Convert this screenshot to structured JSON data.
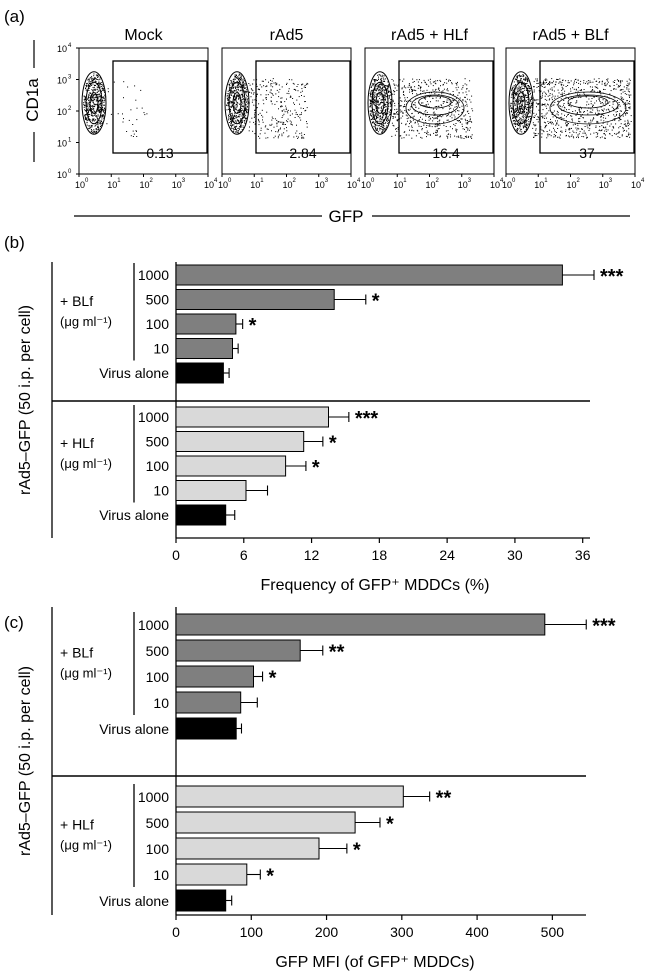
{
  "panel_a": {
    "label": "(a)",
    "ylabel": "CD1a",
    "xlabel": "GFP",
    "ticks": [
      "10",
      "10",
      "10",
      "10",
      "10"
    ],
    "tick_exponents": [
      "0",
      "1",
      "2",
      "3",
      "4"
    ],
    "plots": [
      {
        "title": "Mock",
        "gate_value": "0.13",
        "density": 0.04
      },
      {
        "title": "rAd5",
        "gate_value": "2.84",
        "density": 0.35
      },
      {
        "title": "rAd5 + HLf",
        "gate_value": "16.4",
        "density": 0.7
      },
      {
        "title": "rAd5 + BLf",
        "gate_value": "37",
        "density": 1.0
      }
    ]
  },
  "chart_data": [
    {
      "type": "bar",
      "orientation": "horizontal",
      "panel_label": "(b)",
      "xlabel": "Frequency of GFP⁺ MDDCs (%)",
      "ylabel": "rAd5–GFP (50 i.p. per cell)",
      "xlim": [
        0,
        37
      ],
      "xticks": [
        "0",
        "6",
        "12",
        "18",
        "24",
        "30",
        "36"
      ],
      "groups": [
        {
          "name": "+ BLf",
          "unit": "(μg ml⁻¹)",
          "color": "#7f7f7f",
          "categories": [
            "1000",
            "500",
            "100",
            "10",
            "Virus alone"
          ],
          "values": [
            34.2,
            14.0,
            5.3,
            5.0,
            4.2
          ],
          "errors": [
            2.8,
            2.8,
            0.6,
            0.5,
            0.5
          ],
          "significance": [
            "***",
            "*",
            "*",
            "",
            ""
          ]
        },
        {
          "name": "+ HLf",
          "unit": "(μg ml⁻¹)",
          "color": "#d9d9d9",
          "categories": [
            "1000",
            "500",
            "100",
            "10",
            "Virus alone"
          ],
          "values": [
            13.5,
            11.3,
            9.7,
            6.2,
            4.4
          ],
          "errors": [
            1.8,
            1.7,
            1.8,
            1.9,
            0.8
          ],
          "significance": [
            "***",
            "*",
            "*",
            "",
            ""
          ]
        }
      ]
    },
    {
      "type": "bar",
      "orientation": "horizontal",
      "panel_label": "(c)",
      "xlabel": "GFP MFI (of GFP⁺ MDDCs)",
      "ylabel": "rAd5–GFP (50 i.p. per cell)",
      "xlim": [
        0,
        550
      ],
      "xticks": [
        "0",
        "100",
        "200",
        "300",
        "400",
        "500"
      ],
      "groups": [
        {
          "name": "+ BLf",
          "unit": "(μg ml⁻¹)",
          "color": "#7f7f7f",
          "categories": [
            "1000",
            "500",
            "100",
            "10",
            "Virus alone"
          ],
          "values": [
            490,
            165,
            103,
            86,
            80
          ],
          "errors": [
            55,
            30,
            12,
            22,
            7
          ],
          "significance": [
            "***",
            "**",
            "*",
            "",
            ""
          ]
        },
        {
          "name": "+ HLf",
          "unit": "(μg ml⁻¹)",
          "color": "#d9d9d9",
          "categories": [
            "1000",
            "500",
            "100",
            "10",
            "Virus alone"
          ],
          "values": [
            302,
            238,
            190,
            94,
            66
          ],
          "errors": [
            35,
            33,
            37,
            18,
            8
          ],
          "significance": [
            "**",
            "*",
            "*",
            "*",
            ""
          ]
        }
      ]
    }
  ]
}
